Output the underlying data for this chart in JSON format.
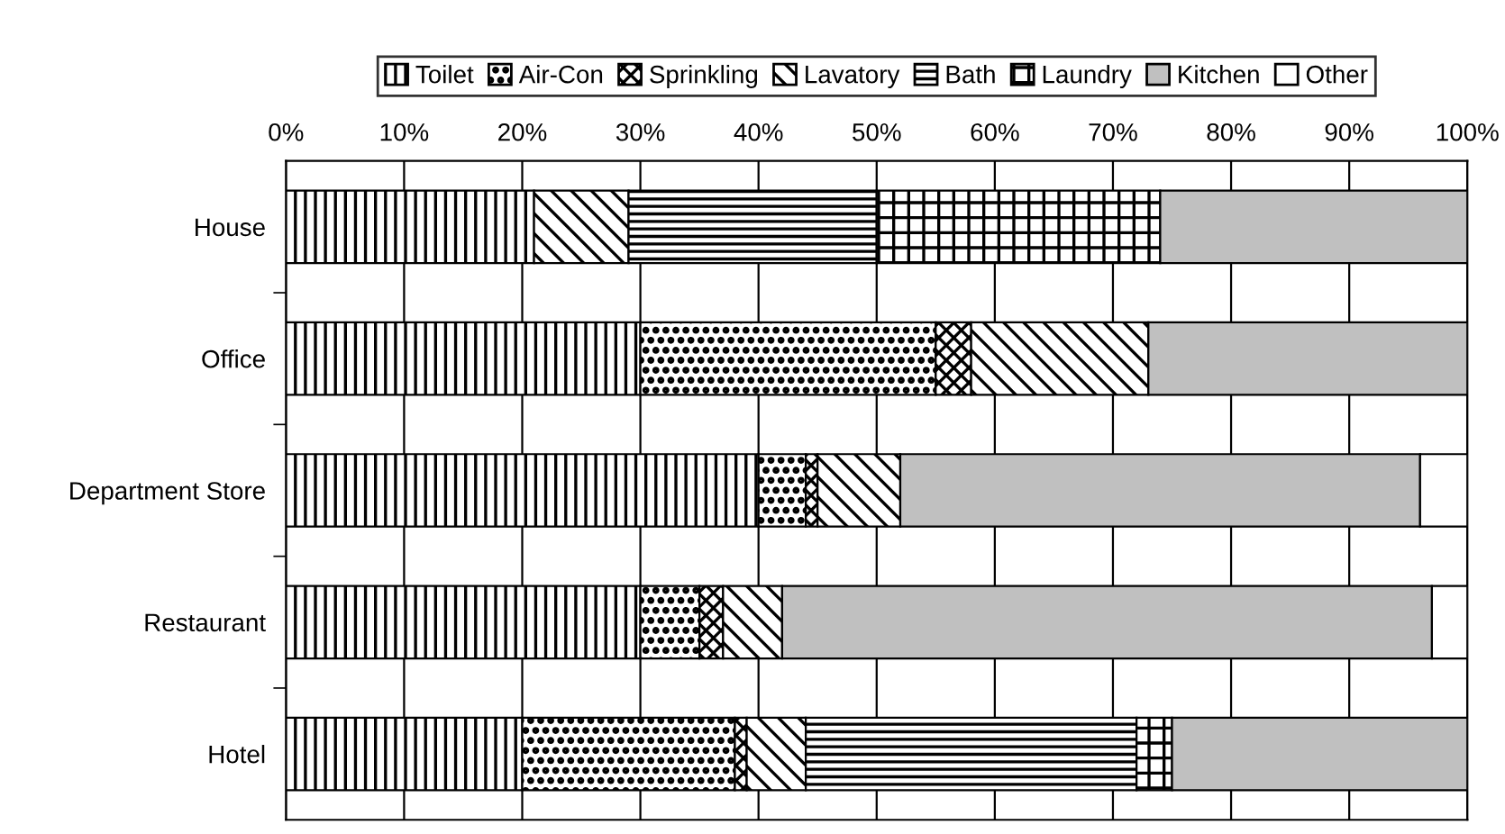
{
  "chart_data": {
    "type": "bar",
    "orientation": "horizontal",
    "stacked": true,
    "categories": [
      "House",
      "Office",
      "Department Store",
      "Restaurant",
      "Hotel"
    ],
    "series": [
      {
        "name": "Toilet",
        "color": "#000000",
        "values": [
          21,
          30,
          40,
          30,
          20
        ]
      },
      {
        "name": "Air-Con",
        "color": "#000000",
        "values": [
          0,
          25,
          4,
          5,
          18
        ]
      },
      {
        "name": "Sprinkling",
        "color": "#000000",
        "values": [
          0,
          3,
          1,
          2,
          1
        ]
      },
      {
        "name": "Lavatory",
        "color": "#000000",
        "values": [
          8,
          15,
          7,
          5,
          5
        ]
      },
      {
        "name": "Bath",
        "color": "#000000",
        "values": [
          21,
          0,
          0,
          0,
          28
        ]
      },
      {
        "name": "Laundry",
        "color": "#000000",
        "values": [
          24,
          0,
          0,
          0,
          3
        ]
      },
      {
        "name": "Kitchen",
        "color": "#c0c0c0",
        "values": [
          26,
          27,
          44,
          55,
          25
        ]
      },
      {
        "name": "Other",
        "color": "#ffffff",
        "values": [
          0,
          0,
          4,
          3,
          0
        ]
      }
    ],
    "xlim": [
      0,
      100
    ],
    "xticks": [
      {
        "value": 0,
        "label": "0%"
      },
      {
        "value": 10,
        "label": "10%"
      },
      {
        "value": 20,
        "label": "20%"
      },
      {
        "value": 30,
        "label": "30%"
      },
      {
        "value": 40,
        "label": "40%"
      },
      {
        "value": 50,
        "label": "50%"
      },
      {
        "value": 60,
        "label": "60%"
      },
      {
        "value": 70,
        "label": "70%"
      },
      {
        "value": 80,
        "label": "80%"
      },
      {
        "value": 90,
        "label": "90%"
      },
      {
        "value": 100,
        "label": "100%"
      }
    ],
    "grid": "x",
    "legend": "top"
  }
}
